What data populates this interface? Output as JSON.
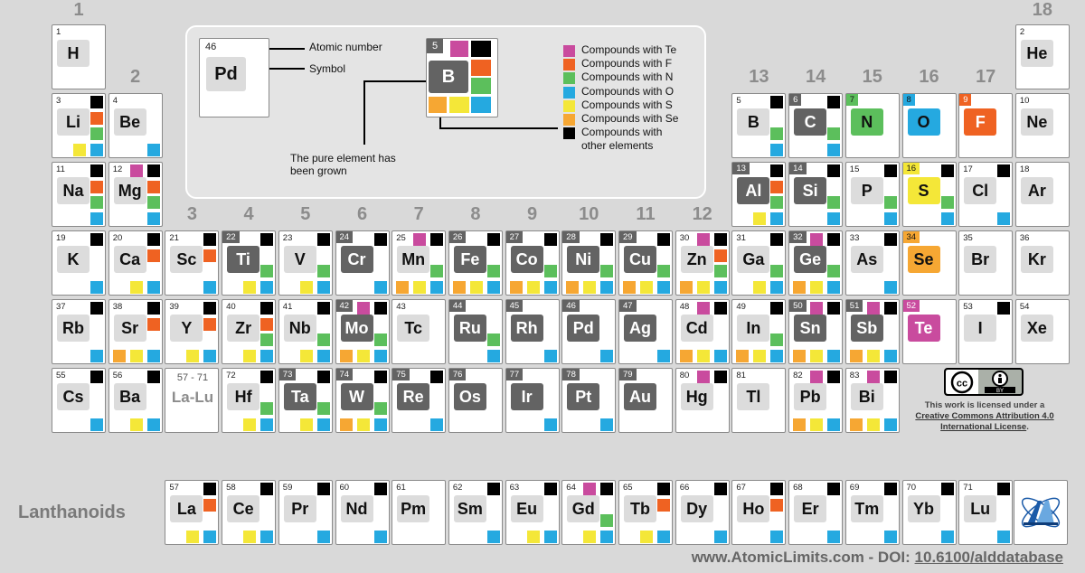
{
  "group_numbers": [
    "1",
    "2",
    "3",
    "4",
    "5",
    "6",
    "7",
    "8",
    "9",
    "10",
    "11",
    "12",
    "13",
    "14",
    "15",
    "16",
    "17",
    "18"
  ],
  "legend": {
    "example_number": "46",
    "example_symbol": "Pd",
    "atomic_number_label": "Atomic number",
    "symbol_label": "Symbol",
    "grown_label_line1": "The pure element has",
    "grown_label_line2": "been grown",
    "example2_number": "5",
    "example2_symbol": "B",
    "items": [
      {
        "key": "te",
        "label": "Compounds with Te",
        "color": "#c94b9e"
      },
      {
        "key": "f",
        "label": "Compounds with F",
        "color": "#ef6222"
      },
      {
        "key": "n",
        "label": "Compounds with N",
        "color": "#5cbf5c"
      },
      {
        "key": "o",
        "label": "Compounds with O",
        "color": "#25a9e0"
      },
      {
        "key": "s",
        "label": "Compounds with S",
        "color": "#f4e738"
      },
      {
        "key": "se",
        "label": "Compounds with Se",
        "color": "#f6a733"
      },
      {
        "key": "oth",
        "label": "Compounds with\nother elements",
        "color": "#000000"
      }
    ]
  },
  "elements": [
    {
      "n": "1",
      "s": "H",
      "col": 1,
      "row": 1,
      "st": "plain",
      "c": []
    },
    {
      "n": "2",
      "s": "He",
      "col": 18,
      "row": 1,
      "st": "plain",
      "c": []
    },
    {
      "n": "3",
      "s": "Li",
      "col": 1,
      "row": 2,
      "st": "plain",
      "c": [
        "oth",
        "f",
        "n",
        "s",
        "o"
      ]
    },
    {
      "n": "4",
      "s": "Be",
      "col": 2,
      "row": 2,
      "st": "plain",
      "c": [
        "o"
      ]
    },
    {
      "n": "5",
      "s": "B",
      "col": 13,
      "row": 2,
      "st": "plain",
      "c": [
        "oth",
        "n",
        "o"
      ]
    },
    {
      "n": "6",
      "s": "C",
      "col": 14,
      "row": 2,
      "st": "dark",
      "c": [
        "oth",
        "n",
        "o"
      ]
    },
    {
      "n": "7",
      "s": "N",
      "col": 15,
      "row": 2,
      "st": "n",
      "c": []
    },
    {
      "n": "8",
      "s": "O",
      "col": 16,
      "row": 2,
      "st": "o",
      "c": []
    },
    {
      "n": "9",
      "s": "F",
      "col": 17,
      "row": 2,
      "st": "f",
      "c": []
    },
    {
      "n": "10",
      "s": "Ne",
      "col": 18,
      "row": 2,
      "st": "plain",
      "c": []
    },
    {
      "n": "11",
      "s": "Na",
      "col": 1,
      "row": 3,
      "st": "plain",
      "c": [
        "oth",
        "f",
        "n",
        "o"
      ]
    },
    {
      "n": "12",
      "s": "Mg",
      "col": 2,
      "row": 3,
      "st": "plain",
      "c": [
        "te",
        "oth",
        "f",
        "n",
        "o"
      ]
    },
    {
      "n": "13",
      "s": "Al",
      "col": 13,
      "row": 3,
      "st": "dark",
      "c": [
        "oth",
        "f",
        "n",
        "s",
        "o"
      ]
    },
    {
      "n": "14",
      "s": "Si",
      "col": 14,
      "row": 3,
      "st": "dark",
      "c": [
        "oth",
        "n",
        "o"
      ]
    },
    {
      "n": "15",
      "s": "P",
      "col": 15,
      "row": 3,
      "st": "plain",
      "c": [
        "oth",
        "n",
        "o"
      ]
    },
    {
      "n": "16",
      "s": "S",
      "col": 16,
      "row": 3,
      "st": "s",
      "c": [
        "oth",
        "n",
        "o"
      ]
    },
    {
      "n": "17",
      "s": "Cl",
      "col": 17,
      "row": 3,
      "st": "plain",
      "c": [
        "oth",
        "o"
      ]
    },
    {
      "n": "18",
      "s": "Ar",
      "col": 18,
      "row": 3,
      "st": "plain",
      "c": []
    },
    {
      "n": "19",
      "s": "K",
      "col": 1,
      "row": 4,
      "st": "plain",
      "c": [
        "oth",
        "o"
      ]
    },
    {
      "n": "20",
      "s": "Ca",
      "col": 2,
      "row": 4,
      "st": "plain",
      "c": [
        "oth",
        "f",
        "s",
        "o"
      ]
    },
    {
      "n": "21",
      "s": "Sc",
      "col": 3,
      "row": 4,
      "st": "plain",
      "c": [
        "oth",
        "f",
        "o"
      ]
    },
    {
      "n": "22",
      "s": "Ti",
      "col": 4,
      "row": 4,
      "st": "dark",
      "c": [
        "oth",
        "n",
        "s",
        "o"
      ]
    },
    {
      "n": "23",
      "s": "V",
      "col": 5,
      "row": 4,
      "st": "plain",
      "c": [
        "oth",
        "n",
        "s",
        "o"
      ]
    },
    {
      "n": "24",
      "s": "Cr",
      "col": 6,
      "row": 4,
      "st": "dark",
      "c": [
        "oth",
        "o"
      ]
    },
    {
      "n": "25",
      "s": "Mn",
      "col": 7,
      "row": 4,
      "st": "plain",
      "c": [
        "te",
        "oth",
        "n",
        "se",
        "s",
        "o"
      ]
    },
    {
      "n": "26",
      "s": "Fe",
      "col": 8,
      "row": 4,
      "st": "dark",
      "c": [
        "oth",
        "n",
        "se",
        "s",
        "o"
      ]
    },
    {
      "n": "27",
      "s": "Co",
      "col": 9,
      "row": 4,
      "st": "dark",
      "c": [
        "oth",
        "n",
        "se",
        "s",
        "o"
      ]
    },
    {
      "n": "28",
      "s": "Ni",
      "col": 10,
      "row": 4,
      "st": "dark",
      "c": [
        "oth",
        "n",
        "se",
        "s",
        "o"
      ]
    },
    {
      "n": "29",
      "s": "Cu",
      "col": 11,
      "row": 4,
      "st": "dark",
      "c": [
        "oth",
        "n",
        "se",
        "s",
        "o"
      ]
    },
    {
      "n": "30",
      "s": "Zn",
      "col": 12,
      "row": 4,
      "st": "plain",
      "c": [
        "te",
        "oth",
        "f",
        "n",
        "se",
        "s",
        "o"
      ]
    },
    {
      "n": "31",
      "s": "Ga",
      "col": 13,
      "row": 4,
      "st": "plain",
      "c": [
        "oth",
        "n",
        "s",
        "o"
      ]
    },
    {
      "n": "32",
      "s": "Ge",
      "col": 14,
      "row": 4,
      "st": "dark",
      "c": [
        "te",
        "oth",
        "n",
        "se",
        "s",
        "o"
      ]
    },
    {
      "n": "33",
      "s": "As",
      "col": 15,
      "row": 4,
      "st": "plain",
      "c": [
        "oth",
        "o"
      ]
    },
    {
      "n": "34",
      "s": "Se",
      "col": 16,
      "row": 4,
      "st": "se",
      "c": []
    },
    {
      "n": "35",
      "s": "Br",
      "col": 17,
      "row": 4,
      "st": "plain",
      "c": []
    },
    {
      "n": "36",
      "s": "Kr",
      "col": 18,
      "row": 4,
      "st": "plain",
      "c": []
    },
    {
      "n": "37",
      "s": "Rb",
      "col": 1,
      "row": 5,
      "st": "plain",
      "c": [
        "oth",
        "o"
      ]
    },
    {
      "n": "38",
      "s": "Sr",
      "col": 2,
      "row": 5,
      "st": "plain",
      "c": [
        "oth",
        "f",
        "se",
        "s",
        "o"
      ]
    },
    {
      "n": "39",
      "s": "Y",
      "col": 3,
      "row": 5,
      "st": "plain",
      "c": [
        "oth",
        "f",
        "s",
        "o"
      ]
    },
    {
      "n": "40",
      "s": "Zr",
      "col": 4,
      "row": 5,
      "st": "plain",
      "c": [
        "oth",
        "f",
        "n",
        "s",
        "o"
      ]
    },
    {
      "n": "41",
      "s": "Nb",
      "col": 5,
      "row": 5,
      "st": "plain",
      "c": [
        "oth",
        "n",
        "s",
        "o"
      ]
    },
    {
      "n": "42",
      "s": "Mo",
      "col": 6,
      "row": 5,
      "st": "dark",
      "c": [
        "te",
        "oth",
        "n",
        "se",
        "s",
        "o"
      ]
    },
    {
      "n": "43",
      "s": "Tc",
      "col": 7,
      "row": 5,
      "st": "plain",
      "c": []
    },
    {
      "n": "44",
      "s": "Ru",
      "col": 8,
      "row": 5,
      "st": "dark",
      "c": [
        "n",
        "o"
      ]
    },
    {
      "n": "45",
      "s": "Rh",
      "col": 9,
      "row": 5,
      "st": "dark",
      "c": [
        "o"
      ]
    },
    {
      "n": "46",
      "s": "Pd",
      "col": 10,
      "row": 5,
      "st": "dark",
      "c": [
        "o"
      ]
    },
    {
      "n": "47",
      "s": "Ag",
      "col": 11,
      "row": 5,
      "st": "dark",
      "c": [
        "o"
      ]
    },
    {
      "n": "48",
      "s": "Cd",
      "col": 12,
      "row": 5,
      "st": "plain",
      "c": [
        "te",
        "oth",
        "se",
        "s",
        "o"
      ]
    },
    {
      "n": "49",
      "s": "In",
      "col": 13,
      "row": 5,
      "st": "plain",
      "c": [
        "oth",
        "n",
        "se",
        "s",
        "o"
      ]
    },
    {
      "n": "50",
      "s": "Sn",
      "col": 14,
      "row": 5,
      "st": "dark",
      "c": [
        "te",
        "oth",
        "se",
        "s",
        "o"
      ]
    },
    {
      "n": "51",
      "s": "Sb",
      "col": 15,
      "row": 5,
      "st": "dark",
      "c": [
        "te",
        "oth",
        "se",
        "s",
        "o"
      ]
    },
    {
      "n": "52",
      "s": "Te",
      "col": 16,
      "row": 5,
      "st": "te",
      "c": []
    },
    {
      "n": "53",
      "s": "I",
      "col": 17,
      "row": 5,
      "st": "plain",
      "c": [
        "oth"
      ]
    },
    {
      "n": "54",
      "s": "Xe",
      "col": 18,
      "row": 5,
      "st": "plain",
      "c": []
    },
    {
      "n": "55",
      "s": "Cs",
      "col": 1,
      "row": 6,
      "st": "plain",
      "c": [
        "oth",
        "o"
      ]
    },
    {
      "n": "56",
      "s": "Ba",
      "col": 2,
      "row": 6,
      "st": "plain",
      "c": [
        "oth",
        "s",
        "o"
      ]
    },
    {
      "n": "72",
      "s": "Hf",
      "col": 4,
      "row": 6,
      "st": "plain",
      "c": [
        "oth",
        "n",
        "s",
        "o"
      ]
    },
    {
      "n": "73",
      "s": "Ta",
      "col": 5,
      "row": 6,
      "st": "dark",
      "c": [
        "oth",
        "n",
        "s",
        "o"
      ]
    },
    {
      "n": "74",
      "s": "W",
      "col": 6,
      "row": 6,
      "st": "dark",
      "c": [
        "oth",
        "n",
        "se",
        "s",
        "o"
      ]
    },
    {
      "n": "75",
      "s": "Re",
      "col": 7,
      "row": 6,
      "st": "dark",
      "c": [
        "oth",
        "o"
      ]
    },
    {
      "n": "76",
      "s": "Os",
      "col": 8,
      "row": 6,
      "st": "dark",
      "c": []
    },
    {
      "n": "77",
      "s": "Ir",
      "col": 9,
      "row": 6,
      "st": "dark",
      "c": [
        "o"
      ]
    },
    {
      "n": "78",
      "s": "Pt",
      "col": 10,
      "row": 6,
      "st": "dark",
      "c": [
        "o"
      ]
    },
    {
      "n": "79",
      "s": "Au",
      "col": 11,
      "row": 6,
      "st": "dark",
      "c": []
    },
    {
      "n": "80",
      "s": "Hg",
      "col": 12,
      "row": 6,
      "st": "plain",
      "c": [
        "te",
        "oth"
      ]
    },
    {
      "n": "81",
      "s": "Tl",
      "col": 13,
      "row": 6,
      "st": "plain",
      "c": []
    },
    {
      "n": "82",
      "s": "Pb",
      "col": 14,
      "row": 6,
      "st": "plain",
      "c": [
        "te",
        "oth",
        "se",
        "s",
        "o"
      ]
    },
    {
      "n": "83",
      "s": "Bi",
      "col": 15,
      "row": 6,
      "st": "plain",
      "c": [
        "te",
        "oth",
        "se",
        "s",
        "o"
      ]
    },
    {
      "n": "57",
      "s": "La",
      "col": 3,
      "row": 7,
      "st": "plain",
      "c": [
        "oth",
        "f",
        "s",
        "o"
      ]
    },
    {
      "n": "58",
      "s": "Ce",
      "col": 4,
      "row": 7,
      "st": "plain",
      "c": [
        "oth",
        "s",
        "o"
      ]
    },
    {
      "n": "59",
      "s": "Pr",
      "col": 5,
      "row": 7,
      "st": "plain",
      "c": [
        "oth",
        "o"
      ]
    },
    {
      "n": "60",
      "s": "Nd",
      "col": 6,
      "row": 7,
      "st": "plain",
      "c": [
        "oth",
        "o"
      ]
    },
    {
      "n": "61",
      "s": "Pm",
      "col": 7,
      "row": 7,
      "st": "plain",
      "c": []
    },
    {
      "n": "62",
      "s": "Sm",
      "col": 8,
      "row": 7,
      "st": "plain",
      "c": [
        "oth",
        "o"
      ]
    },
    {
      "n": "63",
      "s": "Eu",
      "col": 9,
      "row": 7,
      "st": "plain",
      "c": [
        "oth",
        "s",
        "o"
      ]
    },
    {
      "n": "64",
      "s": "Gd",
      "col": 10,
      "row": 7,
      "st": "plain",
      "c": [
        "te",
        "oth",
        "n",
        "s",
        "o"
      ]
    },
    {
      "n": "65",
      "s": "Tb",
      "col": 11,
      "row": 7,
      "st": "plain",
      "c": [
        "oth",
        "f",
        "s",
        "o"
      ]
    },
    {
      "n": "66",
      "s": "Dy",
      "col": 12,
      "row": 7,
      "st": "plain",
      "c": [
        "oth",
        "o"
      ]
    },
    {
      "n": "67",
      "s": "Ho",
      "col": 13,
      "row": 7,
      "st": "plain",
      "c": [
        "oth",
        "f",
        "o"
      ]
    },
    {
      "n": "68",
      "s": "Er",
      "col": 14,
      "row": 7,
      "st": "plain",
      "c": [
        "oth",
        "o"
      ]
    },
    {
      "n": "69",
      "s": "Tm",
      "col": 15,
      "row": 7,
      "st": "plain",
      "c": [
        "oth",
        "o"
      ]
    },
    {
      "n": "70",
      "s": "Yb",
      "col": 16,
      "row": 7,
      "st": "plain",
      "c": [
        "oth",
        "o"
      ]
    },
    {
      "n": "71",
      "s": "Lu",
      "col": 17,
      "row": 7,
      "st": "plain",
      "c": [
        "oth",
        "o"
      ]
    }
  ],
  "lalu": {
    "range": "57 - 71",
    "symbol": "La-Lu"
  },
  "lanthanoids_label": "Lanthanoids",
  "license": {
    "line1": "This work is licensed under a",
    "link": "Creative Commons Attribution 4.0 International License",
    "end": ".",
    "cc_badge": "cc",
    "by_badge": "BY"
  },
  "footer": {
    "site": "www.AtomicLimits.com - DOI: ",
    "doi": "10.6100/alddatabase"
  }
}
